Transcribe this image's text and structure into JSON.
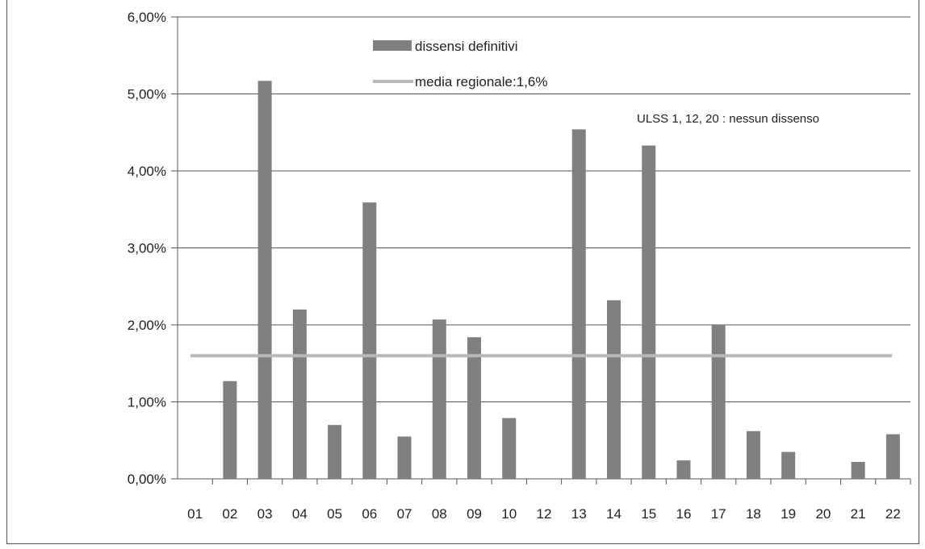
{
  "chart_data": {
    "type": "bar",
    "categories": [
      "01",
      "02",
      "03",
      "04",
      "05",
      "06",
      "07",
      "08",
      "09",
      "10",
      "12",
      "13",
      "14",
      "15",
      "16",
      "17",
      "18",
      "19",
      "20",
      "21",
      "22"
    ],
    "series": [
      {
        "name": "dissensi definitivi",
        "values": [
          0,
          1.27,
          5.17,
          2.2,
          0.7,
          3.59,
          0.55,
          2.07,
          1.84,
          0.79,
          0,
          4.54,
          2.32,
          4.33,
          0.24,
          2.0,
          0.62,
          0.35,
          0,
          0.22,
          0.58
        ]
      }
    ],
    "reference_line": {
      "label": "media regionale:1,6%",
      "value": 1.6
    },
    "yticks": [
      "0,00%",
      "1,00%",
      "2,00%",
      "3,00%",
      "4,00%",
      "5,00%",
      "6,00%"
    ],
    "ylim": [
      0,
      6
    ],
    "annotation": "ULSS  1, 12, 20 : nessun dissenso",
    "colors": {
      "bar": "#808080",
      "reference_line": "#b8b8b8",
      "grid": "#555555"
    },
    "grid": true,
    "legend_position": "top-center"
  }
}
